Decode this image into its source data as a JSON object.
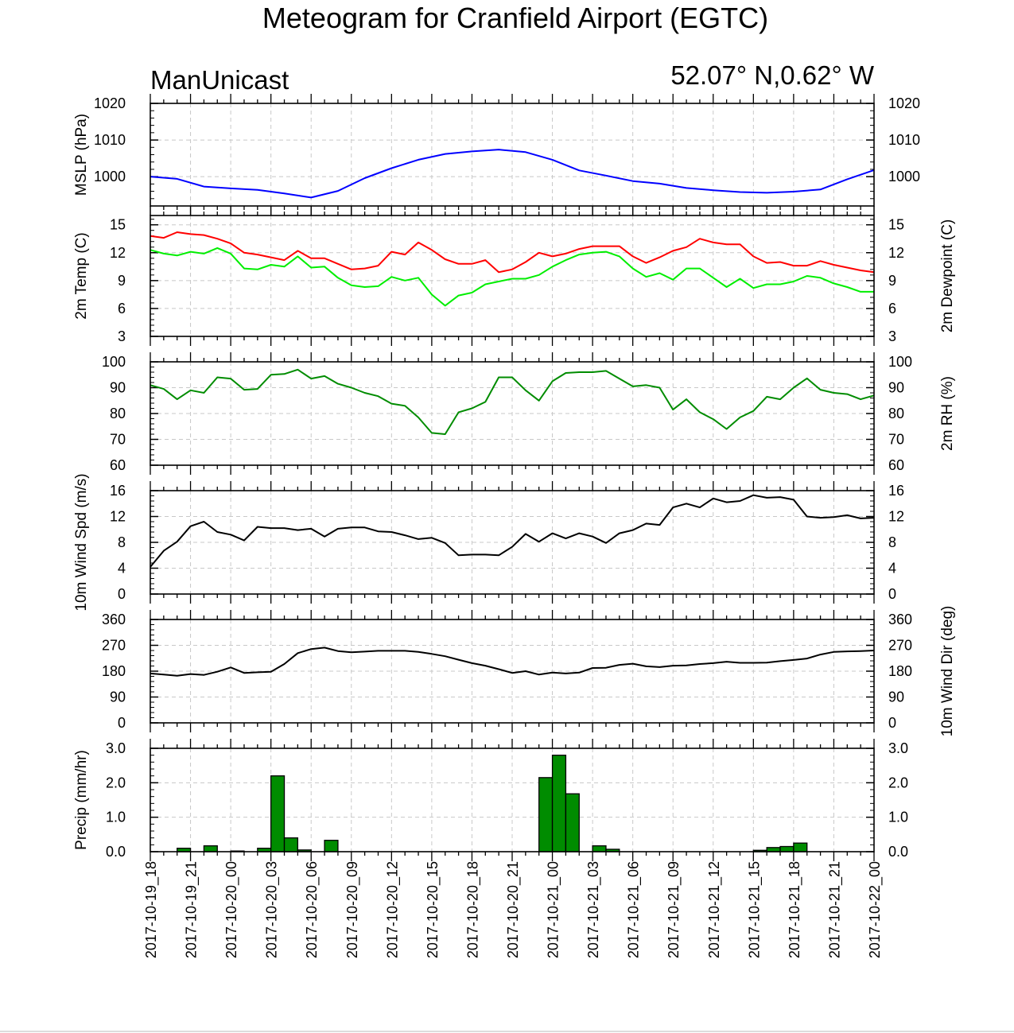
{
  "title": "Meteogram for Cranfield Airport (EGTC)",
  "model": "ManUnicast",
  "location": "52.07° N,0.62° W",
  "chart_data": {
    "type": "line",
    "x_tick_labels": [
      "2017-10-19_18",
      "2017-10-19_21",
      "2017-10-20_00",
      "2017-10-20_03",
      "2017-10-20_06",
      "2017-10-20_09",
      "2017-10-20_12",
      "2017-10-20_15",
      "2017-10-20_18",
      "2017-10-20_21",
      "2017-10-21_00",
      "2017-10-21_03",
      "2017-10-21_06",
      "2017-10-21_09",
      "2017-10-21_12",
      "2017-10-21_15",
      "2017-10-21_18",
      "2017-10-21_21",
      "2017-10-22_00"
    ],
    "x_unit": "hours from 2017-10-19_18",
    "x_range": [
      0,
      54
    ],
    "grid": true,
    "panels": [
      {
        "id": "mslp",
        "type": "line",
        "ylabel": "MSLP (hPa)",
        "ylim": [
          992,
          1020
        ],
        "yticks": [
          1000,
          1010,
          1020
        ],
        "series": [
          {
            "color": "#0000ff",
            "x": [
              0,
              2,
              4,
              6,
              8,
              10,
              12,
              14,
              16,
              18,
              20,
              22,
              24,
              26,
              28,
              30,
              32,
              34,
              36,
              38,
              40,
              42,
              44,
              46,
              48,
              50,
              52,
              54
            ],
            "y": [
              1000,
              999.4,
              997.3,
              996.8,
              996.4,
              995.4,
              994.3,
              996.1,
              999.6,
              1002.3,
              1004.6,
              1006.2,
              1006.9,
              1007.4,
              1006.7,
              1004.6,
              1001.7,
              1000.3,
              998.8,
              998.1,
              996.9,
              996.3,
              995.8,
              995.6,
              995.9,
              996.5,
              999.3,
              1001.8
            ]
          }
        ]
      },
      {
        "id": "temp",
        "type": "line",
        "ylabel": "2m Temp (C)",
        "ylabel_right": "2m Dewpoint (C)",
        "ylim": [
          3,
          16
        ],
        "yticks": [
          3,
          6,
          9,
          12,
          15
        ],
        "series": [
          {
            "color": "#ff0000",
            "x": [
              0,
              1,
              2,
              3,
              4,
              5,
              6,
              7,
              8,
              9,
              10,
              11,
              12,
              13,
              14,
              15,
              16,
              17,
              18,
              19,
              20,
              21,
              22,
              23,
              24,
              25,
              26,
              27,
              28,
              29,
              30,
              31,
              32,
              33,
              34,
              35,
              36,
              37,
              38,
              39,
              40,
              41,
              42,
              43,
              44,
              45,
              46,
              47,
              48,
              49,
              50,
              51,
              52,
              53,
              54
            ],
            "y": [
              13.8,
              13.6,
              14.2,
              14.0,
              13.9,
              13.5,
              13.0,
              12.0,
              11.8,
              11.5,
              11.2,
              12.2,
              11.4,
              11.4,
              10.8,
              10.2,
              10.3,
              10.6,
              12.1,
              11.8,
              13.1,
              12.3,
              11.3,
              10.8,
              10.8,
              11.2,
              9.9,
              10.2,
              11.0,
              12.0,
              11.6,
              11.9,
              12.4,
              12.7,
              12.7,
              12.7,
              11.6,
              10.9,
              11.5,
              12.2,
              12.6,
              13.5,
              13.1,
              12.9,
              12.9,
              11.6,
              10.9,
              11.0,
              10.6,
              10.6,
              11.1,
              10.7,
              10.4,
              10.1,
              9.9
            ]
          },
          {
            "color": "#00ee00",
            "x": [
              0,
              1,
              2,
              3,
              4,
              5,
              6,
              7,
              8,
              9,
              10,
              11,
              12,
              13,
              14,
              15,
              16,
              17,
              18,
              19,
              20,
              21,
              22,
              23,
              24,
              25,
              26,
              27,
              28,
              29,
              30,
              31,
              32,
              33,
              34,
              35,
              36,
              37,
              38,
              39,
              40,
              41,
              42,
              43,
              44,
              45,
              46,
              47,
              48,
              49,
              50,
              51,
              52,
              53,
              54
            ],
            "y": [
              12.3,
              11.9,
              11.7,
              12.1,
              11.9,
              12.5,
              11.9,
              10.3,
              10.2,
              10.7,
              10.5,
              11.6,
              10.4,
              10.5,
              9.3,
              8.5,
              8.3,
              8.4,
              9.4,
              9.0,
              9.3,
              7.5,
              6.3,
              7.4,
              7.7,
              8.6,
              8.9,
              9.2,
              9.2,
              9.6,
              10.5,
              11.2,
              11.8,
              12.0,
              12.1,
              11.6,
              10.3,
              9.4,
              9.8,
              9.1,
              10.3,
              10.3,
              9.3,
              8.3,
              9.2,
              8.2,
              8.6,
              8.6,
              8.9,
              9.5,
              9.3,
              8.7,
              8.3,
              7.8,
              7.8
            ]
          }
        ]
      },
      {
        "id": "rh",
        "type": "line",
        "ylabel": "",
        "ylabel_right": "2m RH (%)",
        "ylim": [
          60,
          100
        ],
        "yticks": [
          60,
          70,
          80,
          90,
          100
        ],
        "series": [
          {
            "color": "#008c00",
            "x": [
              0,
              1,
              2,
              3,
              4,
              5,
              6,
              7,
              8,
              9,
              10,
              11,
              12,
              13,
              14,
              15,
              16,
              17,
              18,
              19,
              20,
              21,
              22,
              23,
              24,
              25,
              26,
              27,
              28,
              29,
              30,
              31,
              32,
              33,
              34,
              35,
              36,
              37,
              38,
              39,
              40,
              41,
              42,
              43,
              44,
              45,
              46,
              47,
              48,
              49,
              50,
              51,
              52,
              53,
              54
            ],
            "y": [
              91,
              89.5,
              85.5,
              89,
              88,
              94,
              93.5,
              89.2,
              89.5,
              95,
              95.3,
              97,
              93.5,
              94.5,
              91.5,
              90,
              88,
              86.7,
              83.8,
              83,
              78.5,
              72.5,
              72,
              80.5,
              82,
              84.5,
              94,
              94,
              89,
              85,
              92.5,
              95.7,
              96,
              96,
              96.5,
              93.5,
              90.5,
              91,
              90,
              81.5,
              85.5,
              80.5,
              77.8,
              74,
              78.5,
              81,
              86.5,
              85.5,
              90,
              93.6,
              89.2,
              88,
              87.5,
              85.5,
              87
            ]
          }
        ]
      },
      {
        "id": "wspd",
        "type": "line",
        "ylabel": "10m Wind Spd (m/s)",
        "ylim": [
          0,
          16
        ],
        "yticks": [
          0,
          4,
          8,
          12,
          16
        ],
        "series": [
          {
            "color": "#000000",
            "x": [
              0,
              1,
              2,
              3,
              4,
              5,
              6,
              7,
              8,
              9,
              10,
              11,
              12,
              13,
              14,
              15,
              16,
              17,
              18,
              19,
              20,
              21,
              22,
              23,
              24,
              25,
              26,
              27,
              28,
              29,
              30,
              31,
              32,
              33,
              34,
              35,
              36,
              37,
              38,
              39,
              40,
              41,
              42,
              43,
              44,
              45,
              46,
              47,
              48,
              49,
              50,
              51,
              52,
              53,
              54
            ],
            "y": [
              4.2,
              6.7,
              8.1,
              10.5,
              11.2,
              9.6,
              9.2,
              8.3,
              10.4,
              10.2,
              10.2,
              9.9,
              10.1,
              8.9,
              10.1,
              10.3,
              10.3,
              9.7,
              9.6,
              9.1,
              8.5,
              8.7,
              7.9,
              6.0,
              6.1,
              6.1,
              6.0,
              7.3,
              9.3,
              8.1,
              9.4,
              8.6,
              9.4,
              8.9,
              7.9,
              9.4,
              9.9,
              10.9,
              10.7,
              13.4,
              14.0,
              13.4,
              14.8,
              14.2,
              14.4,
              15.3,
              14.9,
              15.0,
              14.6,
              12.0,
              11.8,
              11.9,
              12.2,
              11.7,
              11.8
            ]
          }
        ]
      },
      {
        "id": "wdir",
        "type": "line",
        "ylabel": "",
        "ylabel_right": "10m Wind Dir (deg)",
        "ylim": [
          0,
          360
        ],
        "yticks": [
          0,
          90,
          180,
          270,
          360
        ],
        "series": [
          {
            "color": "#000000",
            "x": [
              0,
              1,
              2,
              3,
              4,
              5,
              6,
              7,
              8,
              9,
              10,
              11,
              12,
              13,
              14,
              15,
              16,
              17,
              18,
              19,
              20,
              21,
              22,
              23,
              24,
              25,
              26,
              27,
              28,
              29,
              30,
              31,
              32,
              33,
              34,
              35,
              36,
              37,
              38,
              39,
              40,
              41,
              42,
              43,
              44,
              45,
              46,
              47,
              48,
              49,
              50,
              51,
              52,
              53,
              54
            ],
            "y": [
              172,
              168,
              164,
              170,
              167,
              178,
              193,
              174,
              176,
              178,
              205,
              243,
              257,
              262,
              250,
              246,
              248,
              251,
              251,
              251,
              247,
              240,
              232,
              220,
              208,
              199,
              187,
              174,
              180,
              168,
              175,
              172,
              175,
              191,
              192,
              202,
              206,
              197,
              194,
              199,
              200,
              205,
              208,
              213,
              209,
              209,
              210,
              215,
              219,
              224,
              238,
              247,
              249,
              250,
              252
            ]
          }
        ]
      },
      {
        "id": "precip",
        "type": "bar",
        "ylabel": "Precip (mm/hr)",
        "ylim": [
          0,
          3.0
        ],
        "ytick_labels": [
          "0.0",
          "1.0",
          "2.0",
          "3.0"
        ],
        "bar_color": "#008c00",
        "x": [
          2,
          4,
          6,
          8,
          9,
          10,
          11,
          13,
          29,
          30,
          31,
          33,
          34,
          45,
          46,
          47,
          48
        ],
        "values": [
          0.1,
          0.17,
          0.02,
          0.1,
          2.2,
          0.4,
          0.05,
          0.33,
          2.15,
          2.8,
          1.68,
          0.17,
          0.07,
          0.04,
          0.12,
          0.15,
          0.25
        ]
      }
    ]
  }
}
